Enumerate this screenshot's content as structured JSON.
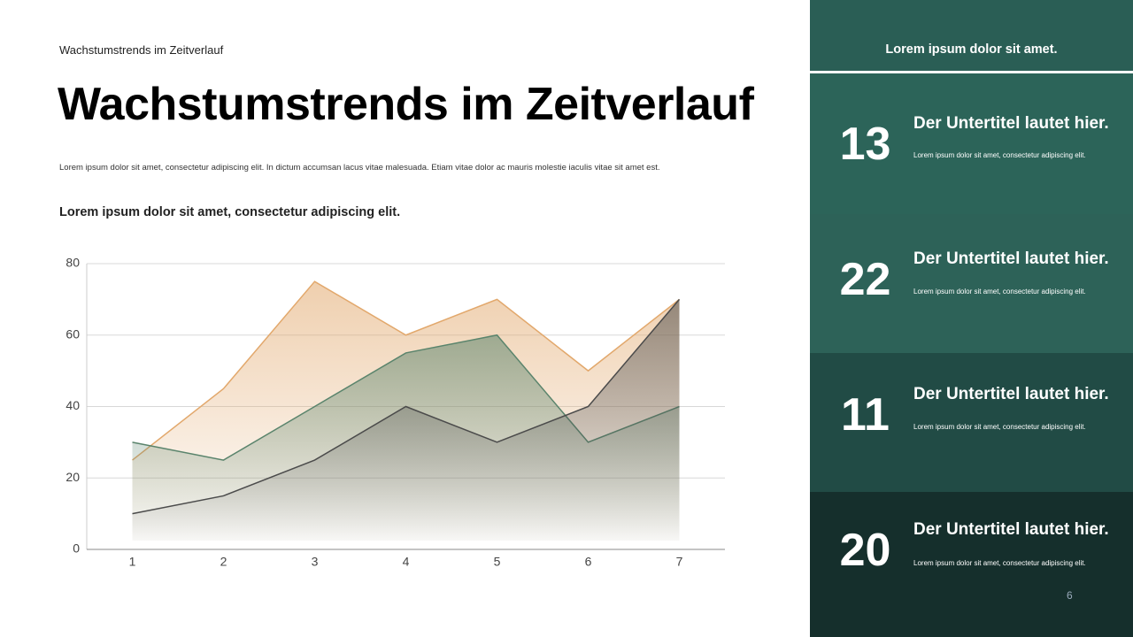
{
  "header": {
    "kicker": "Wachstumstrends im Zeitverlauf",
    "title": "Wachstumstrends im Zeitverlauf",
    "body": "Lorem ipsum dolor sit amet, consectetur adipiscing elit. In dictum accumsan lacus vitae malesuada. Etiam vitae dolor ac mauris molestie iaculis vitae sit amet est.",
    "subtitle": "Lorem ipsum dolor sit amet, consectetur adipiscing elit."
  },
  "chart_data": {
    "type": "area",
    "categories": [
      "1",
      "2",
      "3",
      "4",
      "5",
      "6",
      "7"
    ],
    "series": [
      {
        "color": "#e2a86c",
        "values": [
          25,
          45,
          75,
          60,
          70,
          50,
          70
        ]
      },
      {
        "color": "#5a846c",
        "values": [
          30,
          25,
          40,
          55,
          60,
          30,
          40
        ]
      },
      {
        "color": "#4b4b4b",
        "values": [
          10,
          15,
          25,
          40,
          30,
          40,
          70
        ]
      }
    ],
    "ylim": [
      0,
      80
    ],
    "yticks": [
      0,
      20,
      40,
      60,
      80
    ],
    "grid": true
  },
  "sidebar": {
    "heading": "Lorem ipsum dolor sit amet.",
    "items": [
      {
        "number": 13,
        "title": "Der Untertitel lautet hier.",
        "text": "Lorem ipsum dolor sit amet, consectetur adipiscing elit."
      },
      {
        "number": 22,
        "title": "Der Untertitel lautet hier.",
        "text": "Lorem ipsum dolor sit amet, consectetur adipiscing elit."
      },
      {
        "number": 11,
        "title": "Der Untertitel lautet hier.",
        "text": "Lorem ipsum dolor sit amet, consectetur adipiscing elit."
      },
      {
        "number": 20,
        "title": "Der Untertitel lautet hier.",
        "text": "Lorem ipsum dolor sit amet, consectetur adipiscing elit."
      }
    ]
  },
  "page_number": 6
}
